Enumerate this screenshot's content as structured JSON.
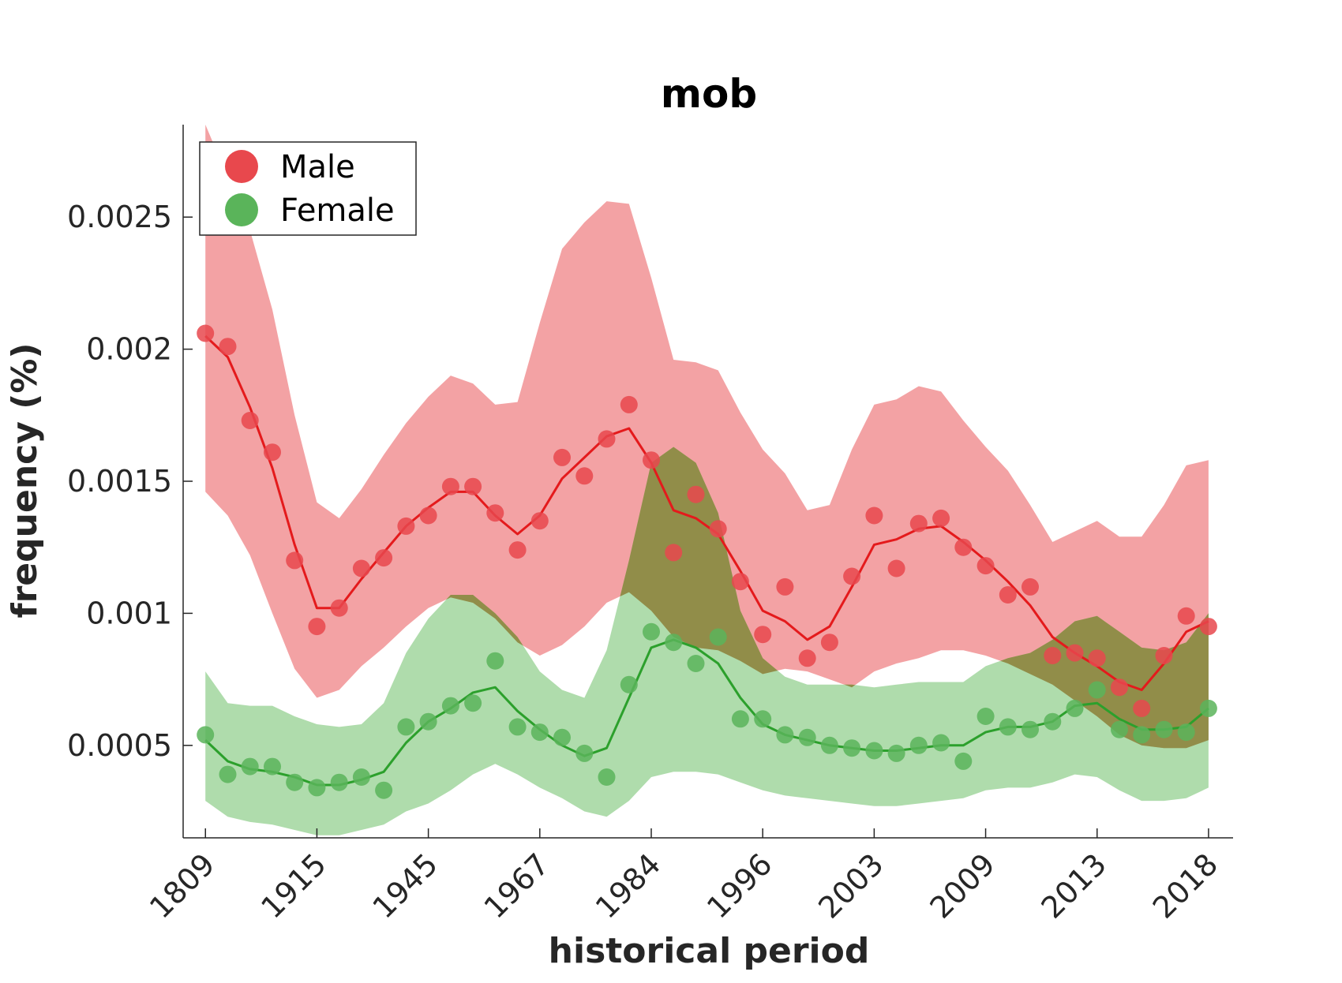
{
  "chart_data": {
    "type": "line",
    "title": "mob",
    "xlabel": "historical period",
    "ylabel": "frequency (%)",
    "x_tick_labels": [
      "1809",
      "1915",
      "1945",
      "1967",
      "1984",
      "1996",
      "2003",
      "2009",
      "2013",
      "2018"
    ],
    "x_tick_positions": [
      1,
      6,
      11,
      16,
      21,
      26,
      31,
      36,
      41,
      46
    ],
    "x_range": [
      0,
      47.1
    ],
    "y_ticks": [
      0.0005,
      0.001,
      0.0015,
      0.002,
      0.0025
    ],
    "y_tick_labels": [
      "0.0005",
      "0.001",
      "0.0015",
      "0.002",
      "0.0025"
    ],
    "ylim": [
      0.00015,
      0.00285
    ],
    "grid": false,
    "legend_position": "top-left",
    "legend": [
      "Male",
      "Female"
    ],
    "colors": {
      "male_point": "#e8484d",
      "male_line": "#e41a1c",
      "male_band": "#f0888b",
      "female_point": "#5ab45a",
      "female_line": "#2ca02c",
      "female_band": "#90cf8c"
    },
    "series": [
      {
        "name": "Male",
        "x": [
          1,
          2,
          3,
          4,
          5,
          6,
          7,
          8,
          9,
          10,
          11,
          12,
          13,
          14,
          15,
          16,
          17,
          18,
          19,
          20,
          21,
          22,
          23,
          24,
          25,
          26,
          27,
          28,
          29,
          30,
          31,
          32,
          33,
          34,
          35,
          36,
          37,
          38,
          39,
          40,
          41,
          42,
          43,
          44,
          45,
          46
        ],
        "points": [
          0.00206,
          0.00201,
          0.00173,
          0.00161,
          0.0012,
          0.00095,
          0.00102,
          0.00117,
          0.00121,
          0.00133,
          0.00137,
          0.00148,
          0.00148,
          0.00138,
          0.00124,
          0.00135,
          0.00159,
          0.00152,
          0.00166,
          0.00179,
          0.00158,
          0.00123,
          0.00145,
          0.00132,
          0.00112,
          0.00092,
          0.0011,
          0.00083,
          0.00089,
          0.00114,
          0.00137,
          0.00117,
          0.00134,
          0.00136,
          0.00125,
          0.00118,
          0.00107,
          0.0011,
          0.00084,
          0.00085,
          0.00083,
          0.00072,
          0.00064,
          0.00084,
          0.00099,
          0.00095
        ],
        "smoothed": [
          0.00205,
          0.00197,
          0.00178,
          0.00155,
          0.00126,
          0.00102,
          0.00102,
          0.00113,
          0.00123,
          0.00133,
          0.0014,
          0.00146,
          0.00146,
          0.00137,
          0.0013,
          0.00137,
          0.00151,
          0.00159,
          0.00167,
          0.0017,
          0.00157,
          0.00139,
          0.00136,
          0.0013,
          0.00116,
          0.00101,
          0.00097,
          0.0009,
          0.00095,
          0.0011,
          0.00126,
          0.00128,
          0.00132,
          0.00133,
          0.00127,
          0.0012,
          0.00112,
          0.00103,
          0.00091,
          0.00085,
          0.0008,
          0.00074,
          0.00071,
          0.00081,
          0.00093,
          0.00097
        ],
        "band_upper": [
          0.00285,
          0.00265,
          0.00245,
          0.00215,
          0.00175,
          0.00142,
          0.00136,
          0.00147,
          0.0016,
          0.00172,
          0.00182,
          0.0019,
          0.00187,
          0.00179,
          0.0018,
          0.0021,
          0.00238,
          0.00248,
          0.00256,
          0.00255,
          0.00227,
          0.00196,
          0.00195,
          0.00192,
          0.00176,
          0.00162,
          0.00153,
          0.00139,
          0.00141,
          0.00162,
          0.00179,
          0.00181,
          0.00186,
          0.00184,
          0.00173,
          0.00163,
          0.00154,
          0.00141,
          0.00127,
          0.00131,
          0.00135,
          0.00129,
          0.00129,
          0.00141,
          0.00156,
          0.00158
        ],
        "band_lower": [
          0.00146,
          0.00137,
          0.00122,
          0.001,
          0.00079,
          0.00068,
          0.00071,
          0.0008,
          0.00087,
          0.00095,
          0.00102,
          0.00106,
          0.00104,
          0.00098,
          0.00089,
          0.00084,
          0.00088,
          0.00095,
          0.00104,
          0.00108,
          0.00101,
          0.00091,
          0.00087,
          0.00086,
          0.00082,
          0.00077,
          0.00079,
          0.00078,
          0.00075,
          0.00072,
          0.00078,
          0.00081,
          0.00083,
          0.00086,
          0.00086,
          0.00084,
          0.00081,
          0.00077,
          0.00073,
          0.00067,
          0.00061,
          0.00054,
          0.0005,
          0.00049,
          0.00049,
          0.00052
        ]
      },
      {
        "name": "Female",
        "x": [
          1,
          2,
          3,
          4,
          5,
          6,
          7,
          8,
          9,
          10,
          11,
          12,
          13,
          14,
          15,
          16,
          17,
          18,
          19,
          20,
          21,
          22,
          23,
          24,
          25,
          26,
          27,
          28,
          29,
          30,
          31,
          32,
          33,
          34,
          35,
          36,
          37,
          38,
          39,
          40,
          41,
          42,
          43,
          44,
          45,
          46
        ],
        "points": [
          0.00054,
          0.00039,
          0.00042,
          0.00042,
          0.00036,
          0.00034,
          0.00036,
          0.00038,
          0.00033,
          0.00057,
          0.00059,
          0.00065,
          0.00066,
          0.00082,
          0.00057,
          0.00055,
          0.00053,
          0.00047,
          0.00038,
          0.00073,
          0.00093,
          0.00089,
          0.00081,
          0.00091,
          0.0006,
          0.0006,
          0.00054,
          0.00053,
          0.0005,
          0.00049,
          0.00048,
          0.00047,
          0.0005,
          0.00051,
          0.00044,
          0.00061,
          0.00057,
          0.00056,
          0.00059,
          0.00064,
          0.00071,
          0.00056,
          0.00054,
          0.00056,
          0.00055,
          0.00064
        ],
        "smoothed": [
          0.00052,
          0.00044,
          0.00041,
          0.0004,
          0.00038,
          0.00035,
          0.00035,
          0.00037,
          0.0004,
          0.00051,
          0.00059,
          0.00064,
          0.0007,
          0.00072,
          0.00063,
          0.00056,
          0.0005,
          0.00046,
          0.00049,
          0.00068,
          0.00087,
          0.0009,
          0.00087,
          0.00081,
          0.00068,
          0.00058,
          0.00054,
          0.00052,
          0.0005,
          0.00049,
          0.00048,
          0.00048,
          0.00049,
          0.0005,
          0.0005,
          0.00055,
          0.00057,
          0.00057,
          0.00059,
          0.00065,
          0.00066,
          0.0006,
          0.00056,
          0.00056,
          0.00057,
          0.00064
        ],
        "band_upper": [
          0.00078,
          0.00066,
          0.00065,
          0.00065,
          0.00061,
          0.00058,
          0.00057,
          0.00058,
          0.00066,
          0.00085,
          0.00098,
          0.00107,
          0.00107,
          0.001,
          0.00091,
          0.00078,
          0.00071,
          0.00068,
          0.00086,
          0.0012,
          0.00157,
          0.00163,
          0.00157,
          0.00138,
          0.00101,
          0.00083,
          0.00076,
          0.00073,
          0.00073,
          0.00073,
          0.00072,
          0.00073,
          0.00074,
          0.00074,
          0.00074,
          0.0008,
          0.00083,
          0.00085,
          0.0009,
          0.00097,
          0.00099,
          0.00093,
          0.00087,
          0.00086,
          0.00089,
          0.001
        ],
        "band_lower": [
          0.00029,
          0.00023,
          0.00021,
          0.0002,
          0.00018,
          0.00016,
          0.00016,
          0.00018,
          0.0002,
          0.00025,
          0.00028,
          0.00033,
          0.00039,
          0.00043,
          0.00039,
          0.00034,
          0.0003,
          0.00025,
          0.00023,
          0.00029,
          0.00038,
          0.0004,
          0.0004,
          0.00039,
          0.00036,
          0.00033,
          0.00031,
          0.0003,
          0.00029,
          0.00028,
          0.00027,
          0.00027,
          0.00028,
          0.00029,
          0.0003,
          0.00033,
          0.00034,
          0.00034,
          0.00036,
          0.00039,
          0.00038,
          0.00033,
          0.00029,
          0.00029,
          0.0003,
          0.00034
        ]
      }
    ]
  }
}
